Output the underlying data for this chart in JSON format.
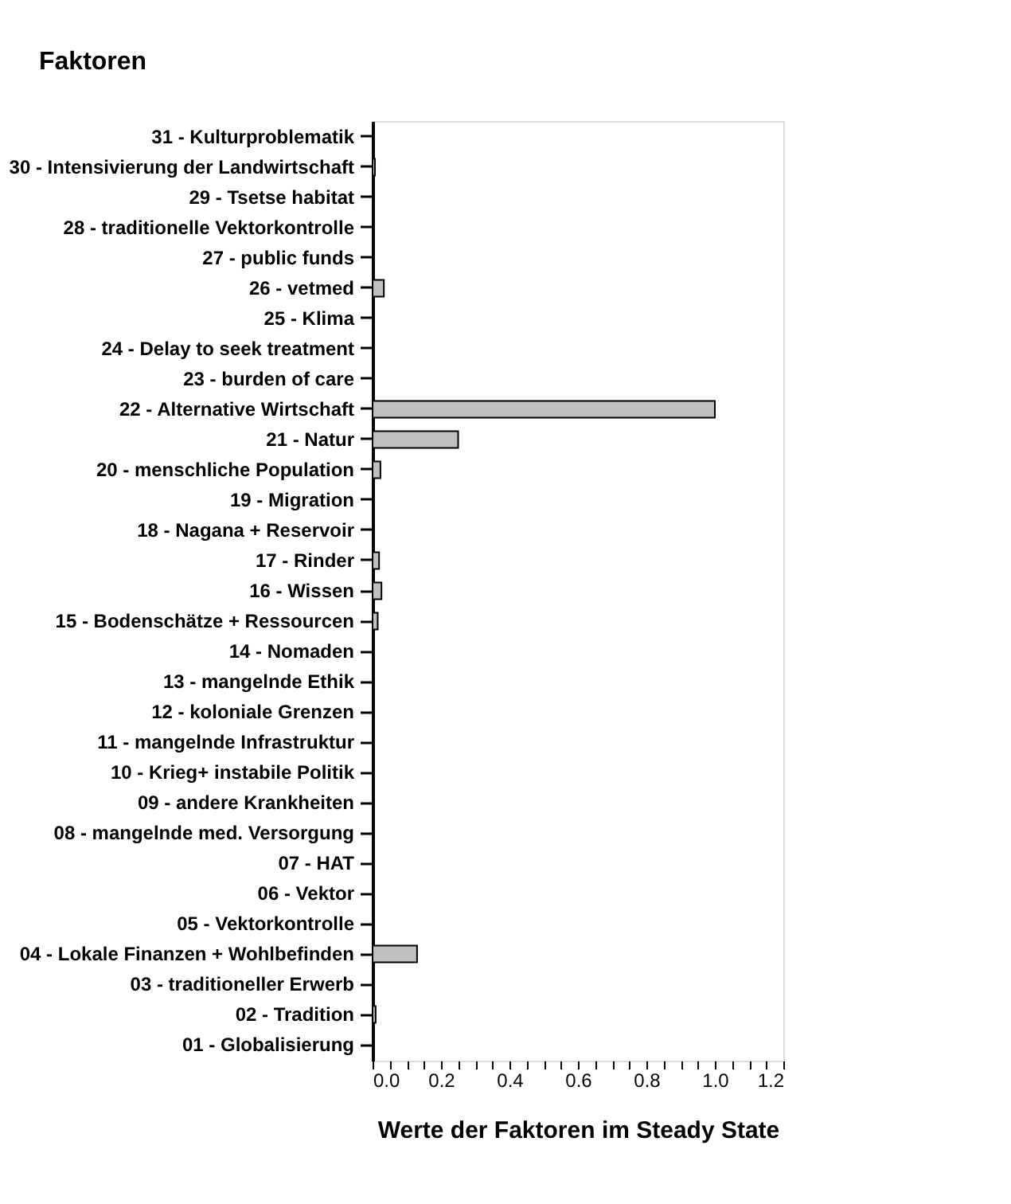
{
  "chart_data": {
    "type": "bar",
    "orientation": "horizontal",
    "ylabel": "Faktoren",
    "xlabel": "Werte der Faktoren im Steady State",
    "categories": [
      "31 - Kulturproblematik",
      "30 - Intensivierung der Landwirtschaft",
      "29 - Tsetse habitat",
      "28 - traditionelle Vektorkontrolle",
      "27 - public funds",
      "26 - vetmed",
      "25 - Klima",
      "24 - Delay to seek treatment",
      "23 - burden of care",
      "22 - Alternative Wirtschaft",
      "21 - Natur",
      "20 - menschliche Population",
      "19 - Migration",
      "18 - Nagana + Reservoir",
      "17 - Rinder",
      "16 - Wissen",
      "15 - Bodenschätze + Ressourcen",
      "14 - Nomaden",
      "13 - mangelnde Ethik",
      "12 - koloniale Grenzen",
      "11 - mangelnde Infrastruktur",
      "10 - Krieg+ instabile Politik",
      "09 - andere Krankheiten",
      "08 - mangelnde med. Versorgung",
      "07 - HAT",
      "06 - Vektor",
      "05 - Vektorkontrolle",
      "04 - Lokale Finanzen + Wohlbefinden",
      "03 - traditioneller Erwerb",
      "02 - Tradition",
      "01 - Globalisierung"
    ],
    "values": [
      0,
      0.007,
      0,
      0,
      0,
      0.033,
      0,
      0,
      0,
      1.0,
      0.25,
      0.023,
      0,
      0,
      0.019,
      0.026,
      0.015,
      0,
      0,
      0,
      0,
      0,
      0,
      0,
      0,
      0,
      0,
      0.13,
      0,
      0.009,
      0
    ],
    "color": "#c0c0c0",
    "xlim": [
      0,
      1.2
    ],
    "xticks": [
      "0.0",
      {
        "value": 0.05,
        "label": null
      },
      {
        "value": 0.1,
        "label": null
      },
      {
        "value": 0.15,
        "label": null
      },
      {
        "value": 0.2,
        "label": "0.2"
      },
      {
        "value": 0.25,
        "label": null
      },
      {
        "value": 0.3,
        "label": null
      },
      {
        "value": 0.35,
        "label": null
      },
      {
        "value": 0.4,
        "label": "0.4"
      },
      {
        "value": 0.45,
        "label": null
      },
      {
        "value": 0.5,
        "label": null
      },
      {
        "value": 0.55,
        "label": null
      },
      {
        "value": 0.6,
        "label": "0.6"
      },
      {
        "value": 0.65,
        "label": null
      },
      {
        "value": 0.7,
        "label": null
      },
      {
        "value": 0.75,
        "label": null
      },
      {
        "value": 0.8,
        "label": "0.8"
      },
      {
        "value": 0.85,
        "label": null
      },
      {
        "value": 0.9,
        "label": null
      },
      {
        "value": 0.95,
        "label": null
      },
      {
        "value": 1.0,
        "label": "1.0"
      },
      {
        "value": 1.05,
        "label": null
      },
      {
        "value": 1.1,
        "label": null
      },
      {
        "value": 1.15,
        "label": null
      },
      {
        "value": 1.2,
        "label": "1.2"
      }
    ],
    "grid": false
  }
}
